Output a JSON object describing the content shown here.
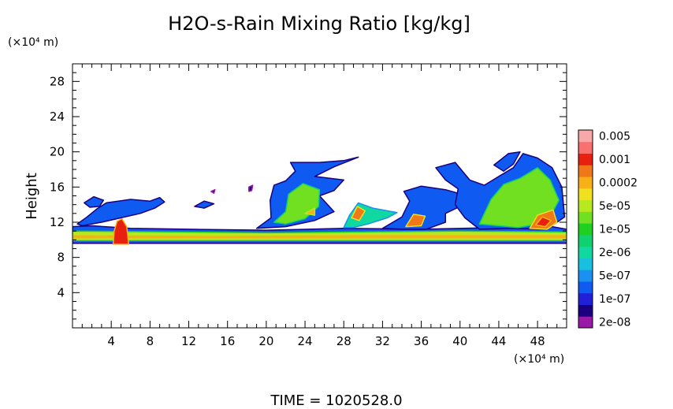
{
  "chart_data": {
    "type": "heatmap",
    "title": "H2O-s-Rain Mixing Ratio [kg/kg]",
    "ylabel": "Height",
    "y_unit": "(×10⁴ m)",
    "x_unit": "(×10⁴ m)",
    "footer": "TIME = 1020528.0",
    "xlim": [
      0,
      51
    ],
    "ylim": [
      0,
      30
    ],
    "x_ticks": [
      4,
      8,
      12,
      16,
      20,
      24,
      28,
      32,
      36,
      40,
      44,
      48
    ],
    "y_ticks": [
      4,
      8,
      12,
      16,
      20,
      24,
      28
    ],
    "grid": false,
    "legend_position": "right",
    "levels": [
      {
        "label": "2e-08",
        "color": "#9a1aa8"
      },
      {
        "label": "",
        "color": "#1a0080"
      },
      {
        "label": "1e-07",
        "color": "#2020d8"
      },
      {
        "label": "",
        "color": "#0f5af0"
      },
      {
        "label": "5e-07",
        "color": "#1a90f0"
      },
      {
        "label": "",
        "color": "#18c0e0"
      },
      {
        "label": "2e-06",
        "color": "#10d8a0"
      },
      {
        "label": "",
        "color": "#10d070"
      },
      {
        "label": "1e-05",
        "color": "#20d020"
      },
      {
        "label": "",
        "color": "#70e020"
      },
      {
        "label": "5e-05",
        "color": "#b8e820"
      },
      {
        "label": "",
        "color": "#f0e020"
      },
      {
        "label": "0.0002",
        "color": "#f8b018"
      },
      {
        "label": "",
        "color": "#f07818"
      },
      {
        "label": "0.001",
        "color": "#e82010"
      },
      {
        "label": "",
        "color": "#f87070"
      },
      {
        "label": "0.005",
        "color": "#f8a8a8"
      }
    ],
    "regions": [
      {
        "level": 3,
        "points": [
          [
            0,
            9.6
          ],
          [
            51,
            9.6
          ],
          [
            51,
            11.2
          ],
          [
            49,
            11.6
          ],
          [
            44,
            11.4
          ],
          [
            36,
            11.2
          ],
          [
            28,
            11.3
          ],
          [
            20,
            11.1
          ],
          [
            12,
            11.2
          ],
          [
            6,
            11.3
          ],
          [
            2,
            11.6
          ],
          [
            0,
            11.5
          ]
        ]
      },
      {
        "level": 10,
        "points": [
          [
            0,
            9.9
          ],
          [
            51,
            9.9
          ],
          [
            51,
            10.9
          ],
          [
            40,
            11
          ],
          [
            30,
            10.9
          ],
          [
            20,
            10.8
          ],
          [
            10,
            10.9
          ],
          [
            0,
            11
          ]
        ]
      },
      {
        "level": 12,
        "points": [
          [
            0,
            10.1
          ],
          [
            51,
            10.1
          ],
          [
            51,
            10.6
          ],
          [
            30,
            10.6
          ],
          [
            15,
            10.5
          ],
          [
            0,
            10.6
          ]
        ]
      },
      {
        "level": 14,
        "points": [
          [
            4.2,
            9.5
          ],
          [
            5.8,
            9.5
          ],
          [
            5.6,
            11.5
          ],
          [
            5.1,
            12.4
          ],
          [
            4.6,
            12.1
          ],
          [
            4.3,
            11
          ]
        ]
      },
      {
        "level": 3,
        "points": [
          [
            0.5,
            11.8
          ],
          [
            1.5,
            12.6
          ],
          [
            2.5,
            13.5
          ],
          [
            3.5,
            14.2
          ],
          [
            6,
            14.6
          ],
          [
            8,
            14.4
          ],
          [
            9,
            14.8
          ],
          [
            9.5,
            14.3
          ],
          [
            8.5,
            13.6
          ],
          [
            7,
            13
          ],
          [
            5,
            12.5
          ],
          [
            3,
            12
          ],
          [
            1,
            11.6
          ]
        ]
      },
      {
        "level": 3,
        "points": [
          [
            1.2,
            14.2
          ],
          [
            2.2,
            14.9
          ],
          [
            3.2,
            14.5
          ],
          [
            2.8,
            13.8
          ],
          [
            1.8,
            13.7
          ]
        ]
      },
      {
        "level": 3,
        "points": [
          [
            12.6,
            13.8
          ],
          [
            13.6,
            14.4
          ],
          [
            14.6,
            14.1
          ],
          [
            13.6,
            13.6
          ]
        ]
      },
      {
        "level": 1,
        "points": [
          [
            14.3,
            15.5
          ],
          [
            14.7,
            15.7
          ],
          [
            14.6,
            15.3
          ]
        ]
      },
      {
        "level": 1,
        "points": [
          [
            18.2,
            16
          ],
          [
            18.6,
            16.2
          ],
          [
            18.5,
            15.6
          ],
          [
            18.2,
            15.5
          ]
        ]
      },
      {
        "level": 3,
        "points": [
          [
            19,
            11.3
          ],
          [
            20.5,
            12.5
          ],
          [
            20.4,
            14.5
          ],
          [
            20.8,
            16.2
          ],
          [
            22,
            16.7
          ],
          [
            23,
            17.8
          ],
          [
            22.5,
            18.8
          ],
          [
            25.5,
            18.8
          ],
          [
            28,
            19
          ],
          [
            29.5,
            19.4
          ],
          [
            27,
            18.3
          ],
          [
            25,
            17.2
          ],
          [
            28,
            16.8
          ],
          [
            27,
            15.6
          ],
          [
            25.5,
            15
          ],
          [
            27,
            13.2
          ],
          [
            25,
            12.2
          ],
          [
            22,
            11.5
          ]
        ]
      },
      {
        "level": 9,
        "points": [
          [
            20.8,
            12
          ],
          [
            22,
            13.2
          ],
          [
            22.3,
            15.2
          ],
          [
            23.8,
            16.4
          ],
          [
            25.5,
            15.7
          ],
          [
            25.4,
            13.8
          ],
          [
            24,
            12.4
          ],
          [
            22,
            11.8
          ]
        ]
      },
      {
        "level": 12,
        "points": [
          [
            24,
            13
          ],
          [
            25,
            13.6
          ],
          [
            25,
            12.8
          ]
        ]
      },
      {
        "level": 6,
        "points": [
          [
            28,
            11.4
          ],
          [
            28.6,
            12.8
          ],
          [
            29.5,
            14.2
          ],
          [
            31,
            13.6
          ],
          [
            33.5,
            13.1
          ],
          [
            32.5,
            12.5
          ],
          [
            30.5,
            11.8
          ],
          [
            29,
            11.4
          ]
        ]
      },
      {
        "level": 13,
        "points": [
          [
            28.8,
            12.5
          ],
          [
            29.4,
            13.8
          ],
          [
            30.2,
            13.3
          ],
          [
            29.6,
            12.2
          ]
        ]
      },
      {
        "level": 3,
        "points": [
          [
            32,
            11.3
          ],
          [
            34,
            12.6
          ],
          [
            34.8,
            14.4
          ],
          [
            34.2,
            15.5
          ],
          [
            36,
            16.1
          ],
          [
            38.5,
            15.7
          ],
          [
            39.8,
            15.3
          ],
          [
            41.5,
            14.6
          ],
          [
            40,
            13.8
          ],
          [
            38.5,
            13
          ],
          [
            38.5,
            12
          ],
          [
            36.5,
            11.2
          ],
          [
            34,
            11.2
          ]
        ]
      },
      {
        "level": 13,
        "points": [
          [
            34.4,
            11.5
          ],
          [
            35.2,
            12.9
          ],
          [
            36.4,
            12.7
          ],
          [
            36,
            11.6
          ]
        ]
      },
      {
        "level": 3,
        "points": [
          [
            37.5,
            18.2
          ],
          [
            39.5,
            18.8
          ],
          [
            41,
            16.8
          ],
          [
            42.5,
            16.2
          ],
          [
            44,
            17.2
          ],
          [
            45.5,
            18.2
          ],
          [
            46.5,
            19.8
          ],
          [
            48,
            19.3
          ],
          [
            49.5,
            18.2
          ],
          [
            50.5,
            16
          ],
          [
            50.8,
            12.6
          ],
          [
            49,
            11.2
          ],
          [
            45,
            11.3
          ],
          [
            42,
            11.2
          ],
          [
            40.5,
            12.5
          ],
          [
            39.5,
            14
          ],
          [
            39.8,
            15.8
          ],
          [
            38.5,
            16.8
          ]
        ]
      },
      {
        "level": 3,
        "points": [
          [
            43.5,
            18.5
          ],
          [
            45,
            19.8
          ],
          [
            46.2,
            20
          ],
          [
            45.5,
            18.6
          ],
          [
            44.5,
            17.8
          ]
        ]
      },
      {
        "level": 9,
        "points": [
          [
            42,
            11.8
          ],
          [
            43.2,
            14.6
          ],
          [
            44.5,
            16.3
          ],
          [
            46.2,
            17
          ],
          [
            48,
            18.2
          ],
          [
            49.3,
            16.8
          ],
          [
            50.2,
            14.5
          ],
          [
            49,
            12
          ],
          [
            46,
            11.4
          ]
        ]
      },
      {
        "level": 13,
        "points": [
          [
            47.2,
            11.3
          ],
          [
            48,
            12.8
          ],
          [
            49.6,
            13.4
          ],
          [
            50,
            12
          ],
          [
            49,
            11.2
          ]
        ]
      },
      {
        "level": 14,
        "points": [
          [
            47.8,
            11.7
          ],
          [
            48.5,
            12.6
          ],
          [
            49.4,
            12.2
          ],
          [
            48.8,
            11.5
          ]
        ]
      }
    ]
  }
}
